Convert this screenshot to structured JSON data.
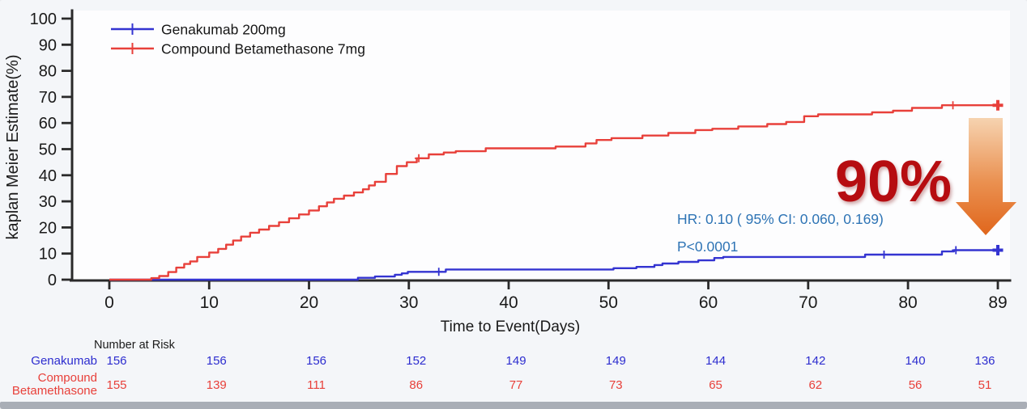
{
  "chart_data": {
    "type": "line",
    "subtype": "kaplan-meier-step",
    "xlabel": "Time to Event(Days)",
    "ylabel": "kaplan Meier Estimate(%)",
    "xlim": [
      0,
      89
    ],
    "ylim": [
      0,
      100
    ],
    "x_ticks": [
      0,
      10,
      20,
      30,
      40,
      50,
      60,
      70,
      80,
      89
    ],
    "y_ticks": [
      0,
      10,
      20,
      30,
      40,
      50,
      60,
      70,
      80,
      90,
      100
    ],
    "grid": false,
    "legend_position": "top-left",
    "series": [
      {
        "name": "Genakumab 200mg",
        "color": "#3434d1",
        "points": [
          [
            0,
            0
          ],
          [
            24.9,
            0.7
          ],
          [
            26.6,
            1.2
          ],
          [
            28.6,
            1.9
          ],
          [
            29.3,
            2.4
          ],
          [
            29.9,
            3.0
          ],
          [
            33.7,
            3.9
          ],
          [
            50.5,
            4.4
          ],
          [
            52.8,
            4.9
          ],
          [
            54.6,
            5.6
          ],
          [
            55.4,
            6.2
          ],
          [
            57.0,
            6.8
          ],
          [
            59.0,
            7.4
          ],
          [
            60.6,
            8.3
          ],
          [
            61.5,
            8.7
          ],
          [
            75.7,
            9.6
          ],
          [
            83.4,
            10.8
          ],
          [
            84.6,
            11.3
          ],
          [
            89,
            11.3
          ]
        ],
        "censor_marks": [
          [
            33.0,
            3.0
          ],
          [
            77.6,
            9.6
          ],
          [
            84.8,
            11.3
          ]
        ],
        "end_marker": [
          89,
          11.3
        ]
      },
      {
        "name": "Compound Betamethasone 7mg",
        "color": "#e8403a",
        "points": [
          [
            0,
            0
          ],
          [
            3.5,
            0
          ],
          [
            4.2,
            0.6
          ],
          [
            5.0,
            1.4
          ],
          [
            5.9,
            2.9
          ],
          [
            6.7,
            4.6
          ],
          [
            7.5,
            6.0
          ],
          [
            8.1,
            7.0
          ],
          [
            8.8,
            8.7
          ],
          [
            10.0,
            10.4
          ],
          [
            10.9,
            11.8
          ],
          [
            11.7,
            13.4
          ],
          [
            12.4,
            15.0
          ],
          [
            13.2,
            16.5
          ],
          [
            14.1,
            18.0
          ],
          [
            15.0,
            19.2
          ],
          [
            16.0,
            20.6
          ],
          [
            17.0,
            22.0
          ],
          [
            18.0,
            23.5
          ],
          [
            19.0,
            25.0
          ],
          [
            20.0,
            26.5
          ],
          [
            21.0,
            28.1
          ],
          [
            21.8,
            29.6
          ],
          [
            22.5,
            31.0
          ],
          [
            23.5,
            32.2
          ],
          [
            24.5,
            33.4
          ],
          [
            25.4,
            34.6
          ],
          [
            26.0,
            36.1
          ],
          [
            26.6,
            37.5
          ],
          [
            27.7,
            40.5
          ],
          [
            28.8,
            43.5
          ],
          [
            29.8,
            45.0
          ],
          [
            30.8,
            46.5
          ],
          [
            32.0,
            48.0
          ],
          [
            33.5,
            48.7
          ],
          [
            34.7,
            49.2
          ],
          [
            37.7,
            50.3
          ],
          [
            44.7,
            51.0
          ],
          [
            47.7,
            52.2
          ],
          [
            48.8,
            53.5
          ],
          [
            50.3,
            54.2
          ],
          [
            53.4,
            55.2
          ],
          [
            56.0,
            56.2
          ],
          [
            58.7,
            57.3
          ],
          [
            60.4,
            57.8
          ],
          [
            63.0,
            58.7
          ],
          [
            65.9,
            59.6
          ],
          [
            67.8,
            60.4
          ],
          [
            69.6,
            62.6
          ],
          [
            71.0,
            63.3
          ],
          [
            76.4,
            64.1
          ],
          [
            78.5,
            64.7
          ],
          [
            80.4,
            65.8
          ],
          [
            83.4,
            66.8
          ],
          [
            89,
            66.8
          ]
        ],
        "censor_marks": [
          [
            31.0,
            46.5
          ],
          [
            84.5,
            66.8
          ]
        ],
        "end_marker": [
          89,
          66.8
        ]
      }
    ],
    "annotations": {
      "hr_text": "HR:  0.10  ( 95% CI:  0.060, 0.169)",
      "p_text": "P<0.0001",
      "hr_color": "#2e74b5",
      "reduction_label": "90%",
      "reduction_color": "#b60d11",
      "arrow_gradient_top": "#f6d3b0",
      "arrow_gradient_bottom": "#e0661c"
    },
    "risk_table": {
      "header": "Number at Risk",
      "columns": [
        0,
        10,
        20,
        30,
        40,
        50,
        60,
        70,
        80,
        89
      ],
      "rows": [
        {
          "label": "Genakumab",
          "label_lines": [
            "Genakumab"
          ],
          "color": "#2d2dcf",
          "values": [
            156,
            156,
            156,
            152,
            149,
            149,
            144,
            142,
            140,
            136
          ]
        },
        {
          "label": "Compound Betamethasone",
          "label_lines": [
            "Compound",
            "Betamethasone"
          ],
          "color": "#e8403a",
          "values": [
            155,
            139,
            111,
            86,
            77,
            73,
            65,
            62,
            56,
            51
          ]
        }
      ]
    },
    "axis_color": "#2a2a2a",
    "plot_background": "#fdfdfe",
    "page_background": "#f4f6f9",
    "bottom_bar_color": "#a9aeb6"
  }
}
